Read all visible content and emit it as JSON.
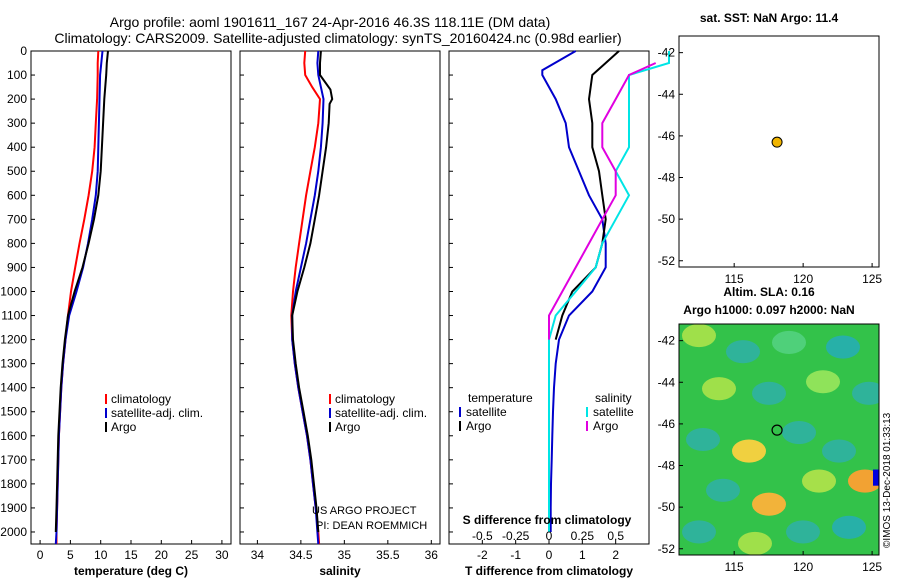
{
  "header": {
    "line1": "Argo profile: aoml 1901611_167 24-Apr-2016 46.3S 118.11E (DM data)",
    "line2": "Climatology: CARS2009. Satellite-adjusted climatology: synTS_20160424.nc (0.98d earlier)"
  },
  "colors": {
    "climatology": "#ff0000",
    "satellite_adj": "#0000cc",
    "argo": "#000000",
    "salinity_sat": "#00e5e5",
    "salinity_argo": "#e000e0",
    "marker": "#f0b400"
  },
  "credits": {
    "project": "US ARGO PROJECT",
    "pi": "PI: DEAN ROEMMICH",
    "stamp": "©IMOS 13-Dec-2018 01:33:13"
  },
  "chart_data": [
    {
      "type": "line",
      "id": "temperature",
      "xlabel": "temperature (deg C)",
      "ylabel": "",
      "xlim": [
        -1.5,
        31.5
      ],
      "ylim": [
        2050,
        0
      ],
      "xticks": [
        0,
        5,
        10,
        15,
        20,
        25,
        30
      ],
      "yticks": [
        0,
        100,
        200,
        300,
        400,
        500,
        600,
        700,
        800,
        900,
        1000,
        1100,
        1200,
        1300,
        1400,
        1500,
        1600,
        1700,
        1800,
        1900,
        2000
      ],
      "legend": [
        "climatology",
        "satellite-adj. clim.",
        "Argo"
      ],
      "series": [
        {
          "name": "climatology",
          "color": "#ff0000",
          "points": [
            [
              9.6,
              0
            ],
            [
              9.5,
              50
            ],
            [
              9.5,
              100
            ],
            [
              9.4,
              200
            ],
            [
              9.2,
              300
            ],
            [
              9.0,
              400
            ],
            [
              8.6,
              500
            ],
            [
              8.0,
              600
            ],
            [
              7.3,
              700
            ],
            [
              6.5,
              800
            ],
            [
              5.8,
              900
            ],
            [
              5.1,
              1000
            ],
            [
              4.6,
              1100
            ],
            [
              4.2,
              1200
            ],
            [
              3.8,
              1300
            ],
            [
              3.5,
              1400
            ],
            [
              3.3,
              1500
            ],
            [
              3.1,
              1600
            ],
            [
              3.0,
              1700
            ],
            [
              2.9,
              1800
            ],
            [
              2.8,
              1900
            ],
            [
              2.7,
              2000
            ],
            [
              2.7,
              2050
            ]
          ]
        },
        {
          "name": "satellite-adj. clim.",
          "color": "#0000cc",
          "points": [
            [
              10.3,
              0
            ],
            [
              10.1,
              50
            ],
            [
              9.9,
              100
            ],
            [
              9.8,
              200
            ],
            [
              9.7,
              300
            ],
            [
              9.6,
              400
            ],
            [
              9.5,
              500
            ],
            [
              9.2,
              600
            ],
            [
              8.6,
              700
            ],
            [
              7.9,
              800
            ],
            [
              7.1,
              900
            ],
            [
              6.0,
              1000
            ],
            [
              4.8,
              1100
            ],
            [
              4.2,
              1200
            ],
            [
              3.8,
              1300
            ],
            [
              3.5,
              1400
            ],
            [
              3.3,
              1500
            ],
            [
              3.1,
              1600
            ],
            [
              3.0,
              1700
            ],
            [
              2.9,
              1800
            ],
            [
              2.8,
              1900
            ],
            [
              2.7,
              2000
            ],
            [
              2.6,
              2050
            ]
          ]
        },
        {
          "name": "Argo",
          "color": "#000000",
          "points": [
            [
              11.2,
              0
            ],
            [
              11.0,
              50
            ],
            [
              10.9,
              100
            ],
            [
              10.6,
              200
            ],
            [
              10.4,
              300
            ],
            [
              10.2,
              400
            ],
            [
              10.0,
              500
            ],
            [
              9.6,
              600
            ],
            [
              8.9,
              700
            ],
            [
              8.0,
              800
            ],
            [
              7.0,
              900
            ],
            [
              5.7,
              1000
            ],
            [
              4.6,
              1100
            ],
            [
              4.1,
              1200
            ],
            [
              3.7,
              1300
            ],
            [
              3.4,
              1400
            ],
            [
              3.2,
              1500
            ],
            [
              3.0,
              1600
            ],
            [
              2.9,
              1700
            ],
            [
              2.8,
              1800
            ],
            [
              2.7,
              1900
            ],
            [
              2.6,
              2000
            ]
          ]
        }
      ]
    },
    {
      "type": "line",
      "id": "salinity",
      "xlabel": "salinity",
      "ylabel": "",
      "xlim": [
        33.8,
        36.1
      ],
      "ylim": [
        2050,
        0
      ],
      "xticks": [
        34,
        34.5,
        35,
        35.5,
        36
      ],
      "legend": [
        "climatology",
        "satellite-adj. clim.",
        "Argo"
      ],
      "series": [
        {
          "name": "climatology",
          "color": "#ff0000",
          "points": [
            [
              34.55,
              0
            ],
            [
              34.54,
              50
            ],
            [
              34.55,
              100
            ],
            [
              34.63,
              150
            ],
            [
              34.72,
              200
            ],
            [
              34.7,
              300
            ],
            [
              34.66,
              400
            ],
            [
              34.61,
              500
            ],
            [
              34.56,
              600
            ],
            [
              34.52,
              700
            ],
            [
              34.48,
              800
            ],
            [
              34.44,
              900
            ],
            [
              34.41,
              1000
            ],
            [
              34.39,
              1100
            ],
            [
              34.4,
              1200
            ],
            [
              34.43,
              1300
            ],
            [
              34.47,
              1400
            ],
            [
              34.52,
              1500
            ],
            [
              34.57,
              1600
            ],
            [
              34.61,
              1700
            ],
            [
              34.64,
              1800
            ],
            [
              34.67,
              1900
            ],
            [
              34.7,
              2000
            ],
            [
              34.71,
              2050
            ]
          ]
        },
        {
          "name": "satellite-adj. clim.",
          "color": "#0000cc",
          "points": [
            [
              34.7,
              0
            ],
            [
              34.69,
              50
            ],
            [
              34.7,
              100
            ],
            [
              34.73,
              150
            ],
            [
              34.76,
              200
            ],
            [
              34.75,
              300
            ],
            [
              34.73,
              400
            ],
            [
              34.7,
              500
            ],
            [
              34.66,
              600
            ],
            [
              34.61,
              700
            ],
            [
              34.56,
              800
            ],
            [
              34.5,
              900
            ],
            [
              34.44,
              1000
            ],
            [
              34.4,
              1100
            ],
            [
              34.4,
              1200
            ],
            [
              34.43,
              1300
            ],
            [
              34.47,
              1400
            ],
            [
              34.52,
              1500
            ],
            [
              34.57,
              1600
            ],
            [
              34.61,
              1700
            ],
            [
              34.64,
              1800
            ],
            [
              34.67,
              1900
            ],
            [
              34.69,
              2000
            ],
            [
              34.7,
              2050
            ]
          ]
        },
        {
          "name": "Argo",
          "color": "#000000",
          "points": [
            [
              34.73,
              0
            ],
            [
              34.72,
              50
            ],
            [
              34.72,
              100
            ],
            [
              34.84,
              160
            ],
            [
              34.86,
              200
            ],
            [
              34.83,
              220
            ],
            [
              34.82,
              300
            ],
            [
              34.79,
              400
            ],
            [
              34.75,
              500
            ],
            [
              34.71,
              600
            ],
            [
              34.66,
              700
            ],
            [
              34.61,
              800
            ],
            [
              34.54,
              900
            ],
            [
              34.46,
              1000
            ],
            [
              34.4,
              1100
            ],
            [
              34.41,
              1200
            ],
            [
              34.44,
              1300
            ],
            [
              34.48,
              1400
            ],
            [
              34.53,
              1500
            ],
            [
              34.58,
              1600
            ],
            [
              34.62,
              1700
            ],
            [
              34.65,
              1800
            ],
            [
              34.68,
              1900
            ],
            [
              34.7,
              2000
            ]
          ]
        }
      ]
    },
    {
      "type": "line",
      "id": "differences",
      "xlabel": "T difference from climatology",
      "xlabel2": "S difference from climatology",
      "ylabel": "",
      "xlim": [
        -3.0,
        3.0
      ],
      "ylim": [
        2050,
        0
      ],
      "xticks": [
        -2,
        -1,
        0,
        1,
        2
      ],
      "xticks_s": [
        "-0.5",
        "-0.25",
        "0",
        "0.25",
        "0.5"
      ],
      "xticks_s_values": [
        -0.5,
        -0.25,
        0,
        0.25,
        0.5
      ],
      "legend_left_title": "temperature",
      "legend_right_title": "salinity",
      "legend": [
        "satellite",
        "Argo",
        "satellite",
        "Argo"
      ],
      "series": [
        {
          "name": "satellite",
          "quantity": "temperature",
          "color": "#0000cc",
          "points": [
            [
              0.8,
              0
            ],
            [
              0.3,
              40
            ],
            [
              -0.2,
              80
            ],
            [
              -0.2,
              100
            ],
            [
              0.2,
              200
            ],
            [
              0.5,
              300
            ],
            [
              0.6,
              400
            ],
            [
              0.9,
              500
            ],
            [
              1.2,
              600
            ],
            [
              1.6,
              700
            ],
            [
              1.7,
              800
            ],
            [
              1.7,
              900
            ],
            [
              1.3,
              1000
            ],
            [
              0.6,
              1100
            ],
            [
              0.3,
              1200
            ],
            [
              0.2,
              1300
            ],
            [
              0.15,
              1400
            ],
            [
              0.12,
              1500
            ],
            [
              0.1,
              1600
            ],
            [
              0.08,
              1700
            ],
            [
              0.06,
              1800
            ],
            [
              0.05,
              1900
            ],
            [
              0.05,
              2000
            ]
          ]
        },
        {
          "name": "Argo",
          "quantity": "temperature",
          "color": "#000000",
          "points": [
            [
              2.1,
              0
            ],
            [
              1.7,
              50
            ],
            [
              1.3,
              100
            ],
            [
              1.2,
              200
            ],
            [
              1.3,
              300
            ],
            [
              1.3,
              400
            ],
            [
              1.5,
              500
            ],
            [
              1.6,
              600
            ],
            [
              1.7,
              700
            ],
            [
              1.6,
              800
            ],
            [
              1.4,
              900
            ],
            [
              0.7,
              1000
            ],
            [
              0.4,
              1100
            ],
            [
              0.2,
              1200
            ]
          ]
        },
        {
          "name": "satellite",
          "quantity": "salinity",
          "color": "#00e5e5",
          "points": [
            [
              0.9,
              0
            ],
            [
              0.9,
              50
            ],
            [
              0.6,
              100
            ],
            [
              0.6,
              200
            ],
            [
              0.6,
              300
            ],
            [
              0.6,
              400
            ],
            [
              0.5,
              500
            ],
            [
              0.6,
              600
            ],
            [
              0.5,
              700
            ],
            [
              0.4,
              800
            ],
            [
              0.35,
              900
            ],
            [
              0.2,
              1000
            ],
            [
              0.05,
              1100
            ],
            [
              0.0,
              1200
            ],
            [
              0.0,
              1300
            ],
            [
              0.0,
              1400
            ],
            [
              0.0,
              1500
            ],
            [
              0.0,
              1600
            ],
            [
              0.0,
              1700
            ],
            [
              0.0,
              1800
            ],
            [
              0.0,
              1900
            ],
            [
              0.0,
              2000
            ]
          ]
        },
        {
          "name": "Argo",
          "quantity": "salinity",
          "color": "#e000e0",
          "points": [
            [
              0.8,
              50
            ],
            [
              0.6,
              100
            ],
            [
              0.5,
              200
            ],
            [
              0.4,
              300
            ],
            [
              0.4,
              400
            ],
            [
              0.5,
              500
            ],
            [
              0.5,
              600
            ],
            [
              0.4,
              700
            ],
            [
              0.3,
              800
            ],
            [
              0.2,
              900
            ],
            [
              0.1,
              1000
            ],
            [
              0.0,
              1100
            ],
            [
              0.0,
              1200
            ]
          ]
        }
      ]
    },
    {
      "type": "scatter",
      "id": "sst-map",
      "title": "sat. SST: NaN Argo: 11.4",
      "xlim": [
        111,
        125.5
      ],
      "ylim": [
        -52.3,
        -41.2
      ],
      "xticks": [
        115,
        120,
        125
      ],
      "yticks": [
        -42,
        -44,
        -46,
        -48,
        -50,
        -52
      ],
      "points": [
        [
          118.11,
          -46.3
        ]
      ]
    },
    {
      "type": "heatmap",
      "id": "sla-map",
      "title": "Altim. SLA: 0.16",
      "subtitle": "Argo h1000: 0.097 h2000: NaN",
      "xlim": [
        111,
        125.5
      ],
      "ylim": [
        -52.3,
        -41.2
      ],
      "xticks": [
        115,
        120,
        125
      ],
      "yticks": [
        -42,
        -44,
        -46,
        -48,
        -50,
        -52
      ],
      "points": [
        [
          118.11,
          -46.3
        ]
      ]
    }
  ]
}
